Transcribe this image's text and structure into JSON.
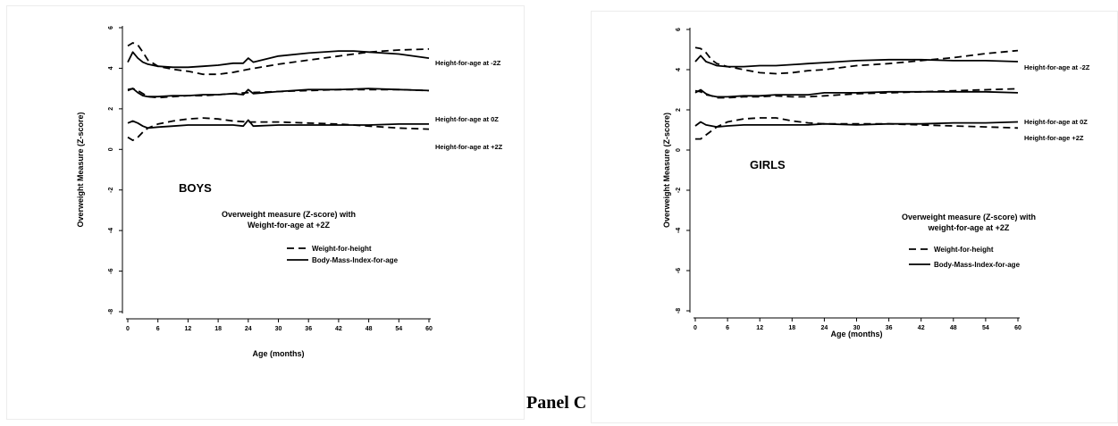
{
  "panel_caption": "Panel C",
  "chart_data": [
    {
      "type": "line",
      "group_label": "BOYS",
      "xlabel": "Age (months)",
      "ylabel": "Overweight Measure (Z-score)",
      "xlim": [
        0,
        60
      ],
      "ylim": [
        -8,
        6
      ],
      "xticks": [
        0,
        6,
        12,
        18,
        24,
        30,
        36,
        42,
        48,
        54,
        60
      ],
      "yticks": [
        -8,
        -6,
        -4,
        -2,
        0,
        2,
        4,
        6
      ],
      "grid": false,
      "legend": {
        "title_line1": "Overweight measure (Z-score) with",
        "title_line2": "Weight-for-age at +2Z",
        "placement": "center-right",
        "entries": [
          "Weight-for-height",
          "Body-Mass-Index-for-age"
        ]
      },
      "annotations": [
        "Height-for-age at -2Z",
        "Height-for-age at 0Z",
        "Height-for-age at +2Z"
      ],
      "series": [
        {
          "style": "dashed",
          "x": [
            0,
            1,
            2,
            3,
            4,
            6,
            9,
            12,
            15,
            18,
            21,
            24,
            30,
            36,
            42,
            48,
            54,
            60
          ],
          "values": [
            5.1,
            5.25,
            5.15,
            4.8,
            4.4,
            4.1,
            3.95,
            3.85,
            3.7,
            3.7,
            3.8,
            3.95,
            4.2,
            4.4,
            4.6,
            4.8,
            4.9,
            4.95
          ]
        },
        {
          "style": "solid",
          "x": [
            0,
            1,
            2,
            3,
            4,
            6,
            9,
            12,
            15,
            18,
            21,
            23,
            24,
            25,
            30,
            36,
            42,
            45,
            48,
            54,
            60
          ],
          "values": [
            4.3,
            4.8,
            4.5,
            4.3,
            4.2,
            4.1,
            4.05,
            4.05,
            4.1,
            4.15,
            4.25,
            4.25,
            4.5,
            4.3,
            4.6,
            4.75,
            4.85,
            4.85,
            4.8,
            4.7,
            4.5
          ]
        },
        {
          "style": "dashed",
          "x": [
            0,
            1,
            2,
            3,
            4,
            6,
            9,
            12,
            15,
            18,
            21,
            24,
            30,
            36,
            42,
            48,
            54,
            60
          ],
          "values": [
            2.95,
            3.0,
            2.9,
            2.75,
            2.6,
            2.55,
            2.6,
            2.65,
            2.65,
            2.7,
            2.75,
            2.8,
            2.85,
            2.9,
            2.95,
            2.95,
            2.95,
            2.9
          ]
        },
        {
          "style": "solid",
          "x": [
            0,
            1,
            2,
            3,
            4,
            6,
            9,
            12,
            15,
            18,
            21,
            23,
            24,
            25,
            30,
            36,
            42,
            48,
            54,
            60
          ],
          "values": [
            2.9,
            3.0,
            2.8,
            2.65,
            2.6,
            2.6,
            2.65,
            2.65,
            2.7,
            2.7,
            2.75,
            2.7,
            2.95,
            2.75,
            2.85,
            2.95,
            2.95,
            3.0,
            2.95,
            2.9
          ]
        },
        {
          "style": "dashed",
          "x": [
            0,
            1,
            2,
            3,
            4,
            6,
            9,
            12,
            15,
            18,
            21,
            24,
            30,
            36,
            42,
            48,
            54,
            60
          ],
          "values": [
            0.6,
            0.45,
            0.6,
            0.85,
            1.05,
            1.25,
            1.4,
            1.5,
            1.55,
            1.5,
            1.4,
            1.35,
            1.35,
            1.3,
            1.25,
            1.15,
            1.05,
            1.0
          ]
        },
        {
          "style": "solid",
          "x": [
            0,
            1,
            2,
            3,
            4,
            6,
            9,
            12,
            15,
            18,
            21,
            23,
            24,
            25,
            30,
            36,
            42,
            48,
            54,
            60
          ],
          "values": [
            1.3,
            1.4,
            1.3,
            1.15,
            1.05,
            1.1,
            1.15,
            1.2,
            1.2,
            1.2,
            1.2,
            1.15,
            1.45,
            1.15,
            1.2,
            1.2,
            1.2,
            1.2,
            1.25,
            1.25
          ]
        }
      ]
    },
    {
      "type": "line",
      "group_label": "GIRLS",
      "xlabel": "Age (months)",
      "ylabel": "Overweight Measure (Z-score)",
      "xlim": [
        0,
        60
      ],
      "ylim": [
        -8,
        6
      ],
      "xticks": [
        0,
        6,
        12,
        18,
        24,
        30,
        36,
        42,
        48,
        54,
        60
      ],
      "yticks": [
        -8,
        -6,
        -4,
        -2,
        0,
        2,
        4,
        6
      ],
      "grid": false,
      "legend": {
        "title_line1": "Overweight measure (Z-score) with",
        "title_line2": "weight-for-age at +2Z",
        "placement": "center-right",
        "entries": [
          "Weight-for-height",
          "Body-Mass-Index-for-age"
        ]
      },
      "annotations": [
        "Height-for-age at -2Z",
        "Height-for-age at 0Z",
        "Height-for-age +2Z"
      ],
      "series": [
        {
          "style": "dashed",
          "x": [
            0,
            1,
            2,
            3,
            4,
            6,
            9,
            12,
            15,
            18,
            21,
            24,
            30,
            36,
            42,
            48,
            54,
            60
          ],
          "values": [
            5.1,
            5.05,
            4.85,
            4.5,
            4.3,
            4.15,
            4.0,
            3.85,
            3.8,
            3.85,
            3.95,
            4.0,
            4.2,
            4.3,
            4.45,
            4.6,
            4.8,
            4.95
          ]
        },
        {
          "style": "solid",
          "x": [
            0,
            1,
            2,
            3,
            4,
            6,
            9,
            12,
            15,
            18,
            21,
            24,
            30,
            36,
            42,
            48,
            54,
            60
          ],
          "values": [
            4.4,
            4.7,
            4.4,
            4.3,
            4.2,
            4.15,
            4.15,
            4.2,
            4.2,
            4.25,
            4.3,
            4.35,
            4.45,
            4.5,
            4.5,
            4.45,
            4.45,
            4.4
          ]
        },
        {
          "style": "dashed",
          "x": [
            0,
            1,
            2,
            3,
            4,
            6,
            9,
            12,
            15,
            18,
            21,
            24,
            30,
            36,
            42,
            48,
            54,
            60
          ],
          "values": [
            2.95,
            2.9,
            2.75,
            2.7,
            2.6,
            2.6,
            2.65,
            2.65,
            2.7,
            2.65,
            2.65,
            2.7,
            2.8,
            2.85,
            2.9,
            2.95,
            3.0,
            3.05
          ]
        },
        {
          "style": "solid",
          "x": [
            0,
            1,
            2,
            3,
            4,
            6,
            9,
            12,
            15,
            18,
            21,
            24,
            30,
            36,
            42,
            48,
            54,
            60
          ],
          "values": [
            2.85,
            3.0,
            2.8,
            2.7,
            2.65,
            2.65,
            2.7,
            2.7,
            2.75,
            2.75,
            2.75,
            2.85,
            2.85,
            2.9,
            2.9,
            2.9,
            2.9,
            2.85
          ]
        },
        {
          "style": "dashed",
          "x": [
            0,
            1,
            2,
            3,
            4,
            6,
            9,
            12,
            15,
            18,
            21,
            24,
            30,
            36,
            42,
            48,
            54,
            60
          ],
          "values": [
            0.55,
            0.55,
            0.75,
            0.95,
            1.15,
            1.4,
            1.55,
            1.6,
            1.6,
            1.45,
            1.35,
            1.3,
            1.3,
            1.3,
            1.25,
            1.2,
            1.15,
            1.1
          ]
        },
        {
          "style": "solid",
          "x": [
            0,
            1,
            2,
            3,
            4,
            6,
            9,
            12,
            15,
            18,
            21,
            24,
            30,
            36,
            42,
            48,
            54,
            60
          ],
          "values": [
            1.2,
            1.4,
            1.25,
            1.2,
            1.15,
            1.2,
            1.25,
            1.25,
            1.25,
            1.25,
            1.25,
            1.3,
            1.25,
            1.3,
            1.3,
            1.35,
            1.35,
            1.4
          ]
        }
      ]
    }
  ]
}
